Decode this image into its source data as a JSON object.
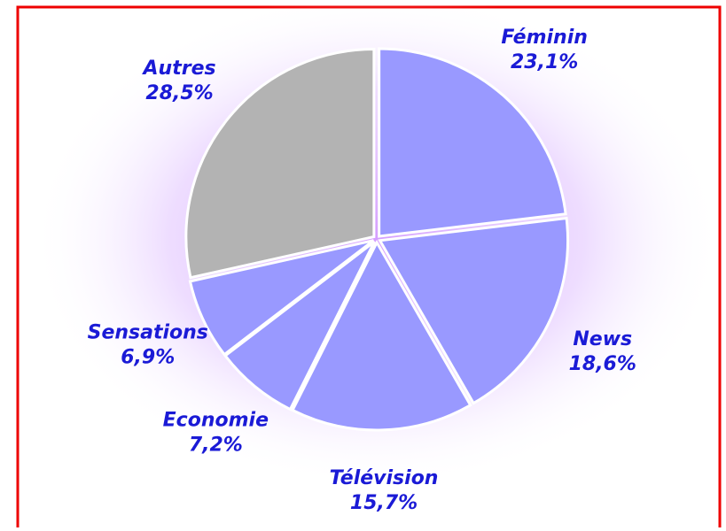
{
  "chart_data": {
    "type": "pie",
    "categories": [
      "Féminin",
      "News",
      "Télévision",
      "Economie",
      "Sensations",
      "Autres"
    ],
    "values": [
      23.1,
      18.6,
      15.7,
      7.2,
      6.9,
      28.5
    ],
    "value_labels": [
      "23,1%",
      "18,6%",
      "15,7%",
      "7,2%",
      "6,9%",
      "28,5%"
    ],
    "colors": [
      "#9999ff",
      "#9999ff",
      "#9999ff",
      "#9999ff",
      "#9999ff",
      "#b3b3b3"
    ]
  }
}
